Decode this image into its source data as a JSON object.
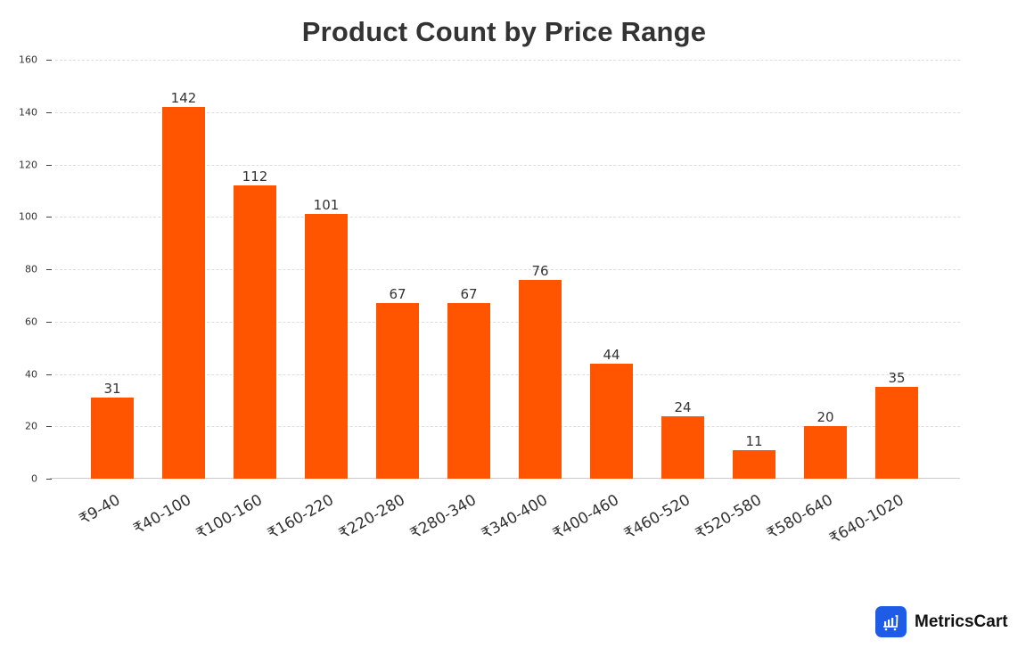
{
  "title": "Product Count by Price Range",
  "brand": {
    "name": "MetricsCart",
    "icon": "bar-chart-cart-icon",
    "color": "#1e5be6"
  },
  "colors": {
    "bar": "#ff5500",
    "grid": "#dddddd",
    "text": "#333333"
  },
  "y_ticks": [
    "0",
    "20",
    "40",
    "60",
    "80",
    "100",
    "120",
    "140",
    "160"
  ],
  "chart_data": {
    "type": "bar",
    "title": "Product Count by Price Range",
    "xlabel": "",
    "ylabel": "",
    "categories": [
      "₹9-40",
      "₹40-100",
      "₹100-160",
      "₹160-220",
      "₹220-280",
      "₹280-340",
      "₹340-400",
      "₹400-460",
      "₹460-520",
      "₹520-580",
      "₹580-640",
      "₹640-1020"
    ],
    "values": [
      31,
      142,
      112,
      101,
      67,
      67,
      76,
      44,
      24,
      11,
      20,
      35
    ],
    "ylim": [
      0,
      160
    ],
    "yticks": [
      0,
      20,
      40,
      60,
      80,
      100,
      120,
      140,
      160
    ],
    "grid": true,
    "grid_style": "dashed horizontal",
    "data_labels": true,
    "legend": null,
    "bar_color": "#ff5500"
  }
}
